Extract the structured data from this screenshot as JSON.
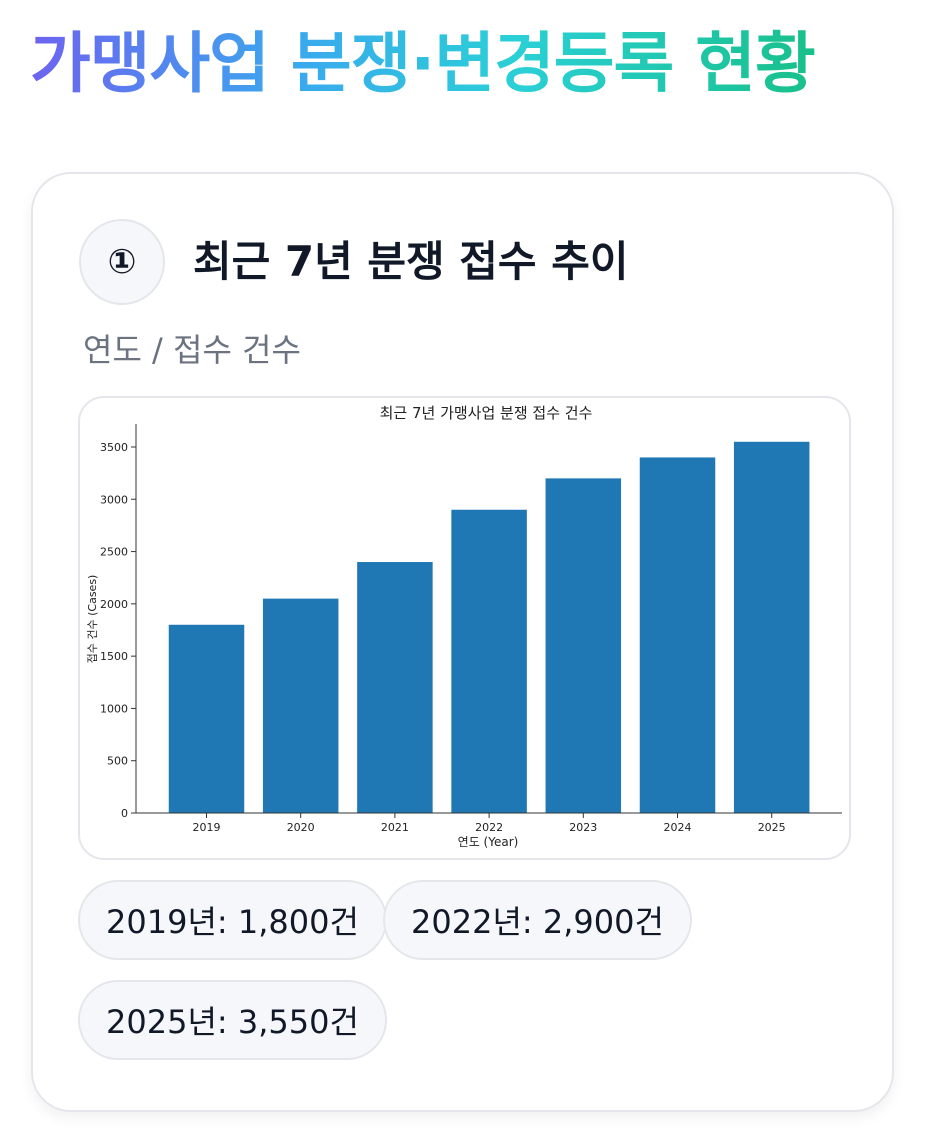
{
  "header": {
    "title": "가맹사업 분쟁·변경등록 현황"
  },
  "section": {
    "badge": "①",
    "title": "최근 7년 분쟁 접수 추이",
    "subtitle": "연도 / 접수 건수"
  },
  "stats": [
    "2019년: 1,800건",
    "2022년: 2,900건",
    "2025년: 3,550건"
  ],
  "colors": {
    "bar": "#1f77b4",
    "title_gradient_start": "#6d63f0",
    "title_gradient_end": "#18c08a"
  },
  "chart_data": {
    "type": "bar",
    "title": "최근 7년 가맹사업 분쟁 접수 건수",
    "xlabel": "연도 (Year)",
    "ylabel": "접수 건수 (Cases)",
    "categories": [
      "2019",
      "2020",
      "2021",
      "2022",
      "2023",
      "2024",
      "2025"
    ],
    "values": [
      1800,
      2050,
      2400,
      2900,
      3200,
      3400,
      3550
    ],
    "ylim": [
      0,
      3720
    ],
    "yticks": [
      0,
      500,
      1000,
      1500,
      2000,
      2500,
      3000,
      3500
    ],
    "grid": false,
    "legend": "none"
  }
}
